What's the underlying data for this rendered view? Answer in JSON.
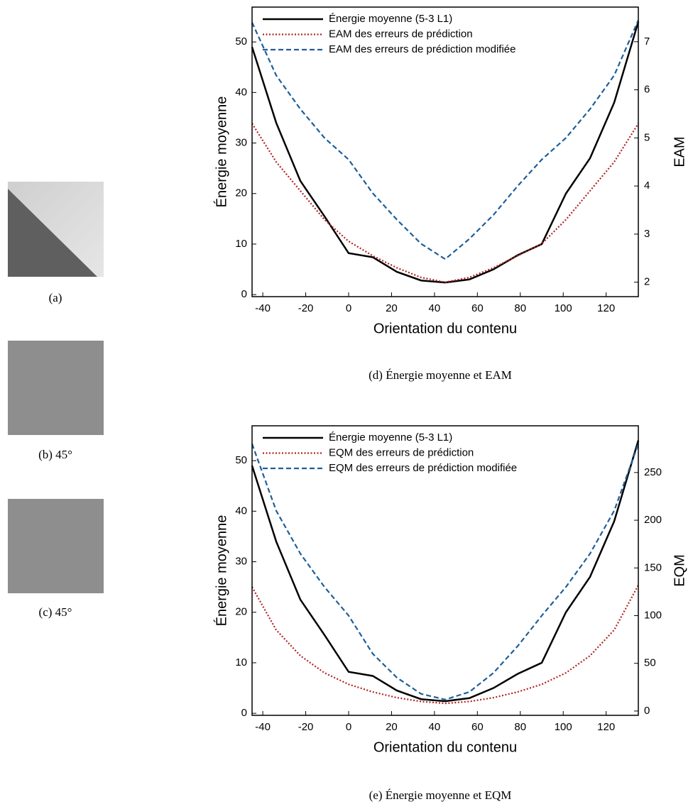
{
  "images": [
    {
      "caption": "(a)"
    },
    {
      "caption": "(b) 45°"
    },
    {
      "caption": "(c) 45°"
    }
  ],
  "chart_data": [
    {
      "type": "line",
      "caption": "(d) Énergie moyenne et EAM",
      "xlabel": "Orientation du contenu",
      "ylabel": "Énergie moyenne",
      "y2label": "EAM",
      "x": [
        -45,
        -33.75,
        -22.5,
        -11.25,
        0,
        11.25,
        22.5,
        33.75,
        45,
        56.25,
        67.5,
        78.75,
        90,
        101.25,
        112.5,
        123.75,
        135
      ],
      "xlim": [
        -45,
        135
      ],
      "xticks": [
        -40,
        -20,
        0,
        20,
        40,
        60,
        80,
        100,
        120
      ],
      "ylim": [
        -0.4,
        56.9
      ],
      "yticks": [
        0,
        10,
        20,
        30,
        40,
        50
      ],
      "y2lim": [
        1.7,
        7.72
      ],
      "y2ticks": [
        2,
        3,
        4,
        5,
        6,
        7
      ],
      "legend": "upper left",
      "series": [
        {
          "name": "Énergie moyenne (5-3 L1)",
          "color": "#000000",
          "style": "solid",
          "values": [
            49,
            34,
            22.5,
            15.5,
            8.2,
            7.4,
            4.5,
            2.8,
            2.4,
            3.0,
            5,
            7.8,
            10,
            20,
            27,
            38,
            54
          ]
        },
        {
          "name": "EAM des erreurs de prédiction",
          "color": "#b22222",
          "style": "dotted",
          "axis": "y2",
          "values": [
            5.3,
            4.5,
            3.9,
            3.3,
            2.85,
            2.55,
            2.3,
            2.1,
            2.0,
            2.1,
            2.3,
            2.55,
            2.8,
            3.3,
            3.9,
            4.5,
            5.3
          ]
        },
        {
          "name": "EAM des erreurs de prédiction modifiée",
          "color": "#1f5f99",
          "style": "dashed",
          "axis": "y2",
          "values": [
            7.4,
            6.3,
            5.6,
            5.0,
            4.55,
            3.85,
            3.3,
            2.8,
            2.48,
            2.9,
            3.4,
            4.0,
            4.55,
            5.0,
            5.6,
            6.3,
            7.45
          ]
        }
      ]
    },
    {
      "type": "line",
      "caption": "(e) Énergie moyenne et EQM",
      "xlabel": "Orientation du contenu",
      "ylabel": "Énergie moyenne",
      "y2label": "EQM",
      "x": [
        -45,
        -33.75,
        -22.5,
        -11.25,
        0,
        11.25,
        22.5,
        33.75,
        45,
        56.25,
        67.5,
        78.75,
        90,
        101.25,
        112.5,
        123.75,
        135
      ],
      "xlim": [
        -45,
        135
      ],
      "xticks": [
        -40,
        -20,
        0,
        20,
        40,
        60,
        80,
        100,
        120
      ],
      "ylim": [
        -0.4,
        56.9
      ],
      "yticks": [
        0,
        10,
        20,
        30,
        40,
        50
      ],
      "y2lim": [
        -4.5,
        299
      ],
      "y2ticks": [
        0,
        50,
        100,
        150,
        200,
        250
      ],
      "legend": "upper left",
      "series": [
        {
          "name": "Énergie moyenne (5-3 L1)",
          "color": "#000000",
          "style": "solid",
          "values": [
            49,
            34,
            22.5,
            15.5,
            8.2,
            7.4,
            4.5,
            2.8,
            2.4,
            3.0,
            5,
            7.8,
            10,
            20,
            27,
            38,
            54
          ]
        },
        {
          "name": "EQM des erreurs de prédiction",
          "color": "#b22222",
          "style": "dotted",
          "axis": "y2",
          "values": [
            130,
            85,
            58,
            40,
            28,
            20,
            14,
            10,
            8,
            10,
            14,
            20,
            28,
            40,
            58,
            85,
            132
          ]
        },
        {
          "name": "EQM des erreurs de prédiction modifiée",
          "color": "#1f5f99",
          "style": "dashed",
          "axis": "y2",
          "values": [
            280,
            210,
            165,
            130,
            100,
            60,
            35,
            18,
            12,
            20,
            40,
            68,
            100,
            130,
            165,
            210,
            280
          ]
        }
      ]
    }
  ]
}
